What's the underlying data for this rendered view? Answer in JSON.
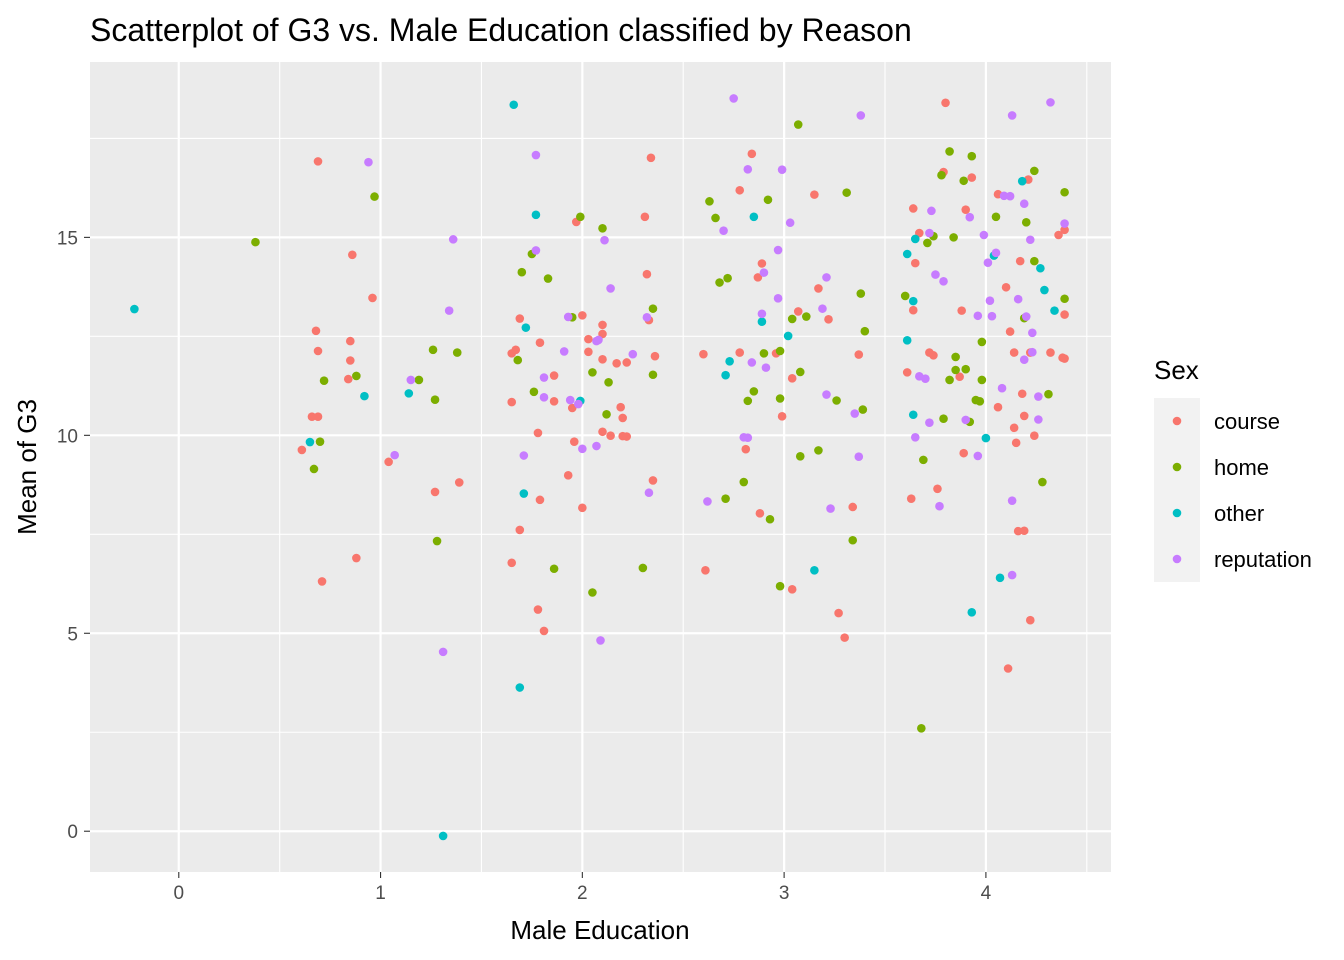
{
  "chart_data": {
    "type": "scatter",
    "title": "Scatterplot of G3 vs. Male Education classified by Reason",
    "xlabel": "Male Education",
    "ylabel": "Mean of G3",
    "xlim": [
      -0.44,
      4.62
    ],
    "ylim": [
      -1.03,
      19.43
    ],
    "x_ticks": [
      0,
      1,
      2,
      3,
      4
    ],
    "y_ticks": [
      0,
      5,
      10,
      15
    ],
    "x_tick_labels": [
      "0",
      "1",
      "2",
      "3",
      "4"
    ],
    "y_tick_labels": [
      "0",
      "5",
      "10",
      "15"
    ],
    "grid": true,
    "legend_title": "Sex",
    "legend_position": "right",
    "series": [
      {
        "name": "course",
        "color": "#F8766D",
        "points": [
          [
            0.69,
            16.92
          ],
          [
            0.68,
            12.64
          ],
          [
            0.69,
            12.13
          ],
          [
            0.66,
            10.47
          ],
          [
            0.69,
            10.47
          ],
          [
            0.61,
            9.63
          ],
          [
            0.71,
            6.31
          ],
          [
            0.86,
            14.56
          ],
          [
            0.85,
            12.38
          ],
          [
            0.85,
            11.89
          ],
          [
            0.84,
            11.42
          ],
          [
            0.88,
            6.9
          ],
          [
            0.96,
            13.47
          ],
          [
            1.04,
            9.33
          ],
          [
            1.27,
            8.57
          ],
          [
            1.39,
            8.81
          ],
          [
            1.65,
            12.07
          ],
          [
            1.67,
            12.16
          ],
          [
            1.65,
            10.84
          ],
          [
            1.69,
            12.95
          ],
          [
            1.69,
            7.61
          ],
          [
            1.65,
            6.78
          ],
          [
            1.78,
            10.06
          ],
          [
            1.79,
            12.34
          ],
          [
            1.79,
            8.37
          ],
          [
            1.78,
            5.6
          ],
          [
            1.81,
            5.06
          ],
          [
            1.86,
            10.86
          ],
          [
            1.86,
            11.51
          ],
          [
            1.93,
            8.99
          ],
          [
            1.95,
            10.69
          ],
          [
            1.97,
            15.39
          ],
          [
            2.0,
            13.03
          ],
          [
            2.03,
            12.43
          ],
          [
            2.03,
            12.11
          ],
          [
            1.96,
            9.84
          ],
          [
            2.0,
            8.17
          ],
          [
            2.1,
            12.79
          ],
          [
            2.1,
            12.56
          ],
          [
            2.1,
            11.92
          ],
          [
            2.1,
            10.09
          ],
          [
            2.14,
            9.99
          ],
          [
            2.17,
            11.82
          ],
          [
            2.19,
            10.71
          ],
          [
            2.2,
            10.44
          ],
          [
            2.2,
            9.98
          ],
          [
            2.22,
            11.84
          ],
          [
            2.22,
            9.97
          ],
          [
            2.31,
            15.52
          ],
          [
            2.32,
            14.07
          ],
          [
            2.33,
            12.91
          ],
          [
            2.34,
            17.01
          ],
          [
            2.36,
            12.0
          ],
          [
            2.35,
            8.86
          ],
          [
            2.6,
            12.05
          ],
          [
            2.61,
            6.59
          ],
          [
            2.78,
            16.19
          ],
          [
            2.78,
            12.09
          ],
          [
            2.81,
            9.65
          ],
          [
            2.84,
            17.11
          ],
          [
            2.87,
            13.99
          ],
          [
            2.89,
            14.34
          ],
          [
            2.88,
            8.03
          ],
          [
            2.96,
            12.07
          ],
          [
            2.99,
            10.48
          ],
          [
            3.04,
            11.44
          ],
          [
            3.04,
            6.11
          ],
          [
            3.07,
            13.13
          ],
          [
            3.15,
            16.08
          ],
          [
            3.17,
            13.71
          ],
          [
            3.22,
            12.93
          ],
          [
            3.27,
            5.51
          ],
          [
            3.3,
            4.89
          ],
          [
            3.34,
            8.19
          ],
          [
            3.37,
            12.04
          ],
          [
            3.61,
            11.59
          ],
          [
            3.64,
            15.73
          ],
          [
            3.64,
            13.16
          ],
          [
            3.65,
            14.35
          ],
          [
            3.67,
            15.11
          ],
          [
            3.63,
            8.4
          ],
          [
            3.72,
            12.09
          ],
          [
            3.74,
            12.02
          ],
          [
            3.76,
            8.65
          ],
          [
            3.79,
            16.65
          ],
          [
            3.8,
            18.4
          ],
          [
            3.88,
            13.15
          ],
          [
            3.87,
            11.48
          ],
          [
            3.89,
            9.55
          ],
          [
            3.9,
            15.7
          ],
          [
            3.93,
            16.51
          ],
          [
            4.06,
            16.09
          ],
          [
            4.06,
            10.71
          ],
          [
            4.1,
            13.74
          ],
          [
            4.12,
            12.62
          ],
          [
            4.11,
            4.11
          ],
          [
            4.14,
            12.09
          ],
          [
            4.14,
            10.19
          ],
          [
            4.15,
            9.81
          ],
          [
            4.16,
            7.58
          ],
          [
            4.17,
            14.4
          ],
          [
            4.19,
            7.59
          ],
          [
            4.19,
            10.49
          ],
          [
            4.18,
            11.05
          ],
          [
            4.21,
            16.46
          ],
          [
            4.22,
            12.09
          ],
          [
            4.22,
            5.33
          ],
          [
            4.24,
            9.99
          ],
          [
            4.32,
            12.09
          ],
          [
            4.36,
            15.06
          ],
          [
            4.38,
            11.96
          ],
          [
            4.39,
            15.19
          ],
          [
            4.39,
            13.05
          ],
          [
            4.39,
            11.94
          ]
        ]
      },
      {
        "name": "home",
        "color": "#7CAE00",
        "points": [
          [
            0.38,
            14.88
          ],
          [
            0.67,
            9.15
          ],
          [
            0.7,
            9.84
          ],
          [
            0.72,
            11.38
          ],
          [
            0.88,
            11.5
          ],
          [
            0.97,
            16.03
          ],
          [
            1.19,
            11.4
          ],
          [
            1.26,
            12.16
          ],
          [
            1.27,
            10.9
          ],
          [
            1.28,
            7.33
          ],
          [
            1.38,
            12.09
          ],
          [
            1.68,
            11.9
          ],
          [
            1.7,
            14.12
          ],
          [
            1.75,
            14.58
          ],
          [
            1.76,
            11.1
          ],
          [
            1.83,
            13.96
          ],
          [
            1.86,
            6.63
          ],
          [
            1.95,
            12.98
          ],
          [
            1.99,
            15.52
          ],
          [
            2.05,
            11.59
          ],
          [
            2.05,
            6.03
          ],
          [
            2.1,
            15.23
          ],
          [
            2.12,
            10.53
          ],
          [
            2.13,
            11.34
          ],
          [
            2.3,
            6.65
          ],
          [
            2.35,
            13.2
          ],
          [
            2.35,
            11.53
          ],
          [
            2.63,
            15.91
          ],
          [
            2.66,
            15.49
          ],
          [
            2.68,
            13.86
          ],
          [
            2.72,
            13.97
          ],
          [
            2.71,
            8.4
          ],
          [
            2.8,
            8.82
          ],
          [
            2.82,
            10.87
          ],
          [
            2.85,
            11.11
          ],
          [
            2.9,
            12.07
          ],
          [
            2.92,
            15.95
          ],
          [
            2.93,
            7.88
          ],
          [
            2.98,
            12.13
          ],
          [
            2.98,
            10.93
          ],
          [
            2.98,
            6.19
          ],
          [
            3.04,
            12.94
          ],
          [
            3.07,
            17.85
          ],
          [
            3.08,
            11.6
          ],
          [
            3.08,
            9.47
          ],
          [
            3.11,
            13.0
          ],
          [
            3.17,
            9.62
          ],
          [
            3.26,
            10.88
          ],
          [
            3.31,
            16.13
          ],
          [
            3.34,
            7.35
          ],
          [
            3.38,
            13.58
          ],
          [
            3.39,
            10.65
          ],
          [
            3.4,
            12.63
          ],
          [
            3.6,
            13.52
          ],
          [
            3.68,
            2.6
          ],
          [
            3.69,
            9.38
          ],
          [
            3.71,
            14.86
          ],
          [
            3.74,
            15.03
          ],
          [
            3.78,
            16.57
          ],
          [
            3.79,
            10.42
          ],
          [
            3.82,
            17.17
          ],
          [
            3.82,
            11.4
          ],
          [
            3.84,
            15.0
          ],
          [
            3.85,
            11.65
          ],
          [
            3.85,
            11.98
          ],
          [
            3.89,
            16.43
          ],
          [
            3.9,
            11.67
          ],
          [
            3.92,
            10.34
          ],
          [
            3.93,
            17.05
          ],
          [
            3.95,
            10.89
          ],
          [
            3.97,
            10.86
          ],
          [
            3.98,
            12.36
          ],
          [
            3.98,
            11.4
          ],
          [
            4.05,
            15.52
          ],
          [
            4.19,
            12.96
          ],
          [
            4.2,
            15.38
          ],
          [
            4.24,
            16.68
          ],
          [
            4.24,
            14.4
          ],
          [
            4.28,
            8.82
          ],
          [
            4.31,
            11.04
          ],
          [
            4.39,
            16.14
          ],
          [
            4.39,
            13.45
          ]
        ]
      },
      {
        "name": "other",
        "color": "#00BFC4",
        "points": [
          [
            -0.22,
            13.19
          ],
          [
            0.65,
            9.83
          ],
          [
            0.92,
            10.99
          ],
          [
            1.14,
            11.06
          ],
          [
            1.31,
            -0.12
          ],
          [
            1.66,
            18.35
          ],
          [
            1.69,
            3.63
          ],
          [
            1.71,
            8.53
          ],
          [
            1.72,
            12.72
          ],
          [
            1.77,
            15.57
          ],
          [
            1.99,
            10.87
          ],
          [
            2.71,
            11.52
          ],
          [
            2.73,
            11.87
          ],
          [
            2.85,
            15.52
          ],
          [
            2.89,
            12.87
          ],
          [
            3.02,
            12.51
          ],
          [
            3.15,
            6.59
          ],
          [
            3.61,
            14.58
          ],
          [
            3.61,
            12.4
          ],
          [
            3.64,
            10.52
          ],
          [
            3.64,
            13.39
          ],
          [
            3.65,
            14.96
          ],
          [
            3.93,
            5.53
          ],
          [
            4.0,
            9.93
          ],
          [
            4.04,
            14.54
          ],
          [
            4.07,
            6.4
          ],
          [
            4.18,
            16.42
          ],
          [
            4.27,
            14.22
          ],
          [
            4.29,
            13.67
          ],
          [
            4.34,
            13.15
          ]
        ]
      },
      {
        "name": "reputation",
        "color": "#C77CFF",
        "points": [
          [
            0.94,
            16.9
          ],
          [
            1.07,
            9.5
          ],
          [
            1.15,
            11.4
          ],
          [
            1.31,
            4.53
          ],
          [
            1.34,
            13.15
          ],
          [
            1.36,
            14.95
          ],
          [
            1.71,
            9.49
          ],
          [
            1.77,
            17.08
          ],
          [
            1.77,
            14.67
          ],
          [
            1.81,
            10.96
          ],
          [
            1.81,
            11.46
          ],
          [
            1.91,
            12.12
          ],
          [
            1.93,
            12.99
          ],
          [
            1.94,
            10.89
          ],
          [
            1.98,
            10.79
          ],
          [
            2.0,
            9.66
          ],
          [
            2.07,
            9.73
          ],
          [
            2.07,
            12.38
          ],
          [
            2.08,
            12.41
          ],
          [
            2.09,
            4.82
          ],
          [
            2.11,
            14.93
          ],
          [
            2.14,
            13.71
          ],
          [
            2.25,
            12.05
          ],
          [
            2.32,
            12.98
          ],
          [
            2.33,
            8.55
          ],
          [
            2.62,
            8.33
          ],
          [
            2.7,
            15.17
          ],
          [
            2.75,
            18.51
          ],
          [
            2.8,
            9.95
          ],
          [
            2.82,
            16.72
          ],
          [
            2.82,
            9.94
          ],
          [
            2.84,
            11.84
          ],
          [
            2.89,
            13.07
          ],
          [
            2.9,
            14.11
          ],
          [
            2.91,
            11.71
          ],
          [
            2.97,
            14.68
          ],
          [
            2.97,
            13.46
          ],
          [
            2.99,
            16.71
          ],
          [
            3.03,
            15.37
          ],
          [
            3.21,
            13.99
          ],
          [
            3.21,
            11.03
          ],
          [
            3.23,
            8.15
          ],
          [
            3.19,
            13.2
          ],
          [
            3.35,
            10.55
          ],
          [
            3.37,
            9.46
          ],
          [
            3.38,
            18.08
          ],
          [
            3.65,
            9.95
          ],
          [
            3.67,
            11.49
          ],
          [
            3.7,
            11.43
          ],
          [
            3.73,
            15.67
          ],
          [
            3.72,
            15.11
          ],
          [
            3.72,
            10.32
          ],
          [
            3.75,
            14.06
          ],
          [
            3.77,
            8.21
          ],
          [
            3.79,
            13.89
          ],
          [
            3.9,
            10.39
          ],
          [
            3.92,
            15.51
          ],
          [
            3.96,
            13.02
          ],
          [
            3.96,
            9.48
          ],
          [
            3.99,
            15.06
          ],
          [
            4.01,
            14.36
          ],
          [
            4.02,
            13.4
          ],
          [
            4.03,
            13.01
          ],
          [
            4.05,
            14.61
          ],
          [
            4.08,
            11.19
          ],
          [
            4.09,
            16.05
          ],
          [
            4.12,
            16.04
          ],
          [
            4.13,
            18.08
          ],
          [
            4.13,
            8.35
          ],
          [
            4.13,
            6.47
          ],
          [
            4.16,
            13.44
          ],
          [
            4.19,
            15.85
          ],
          [
            4.19,
            11.91
          ],
          [
            4.2,
            13.0
          ],
          [
            4.22,
            14.94
          ],
          [
            4.23,
            12.1
          ],
          [
            4.23,
            12.59
          ],
          [
            4.26,
            10.98
          ],
          [
            4.26,
            10.4
          ],
          [
            4.32,
            18.41
          ],
          [
            4.39,
            15.35
          ]
        ]
      }
    ]
  }
}
